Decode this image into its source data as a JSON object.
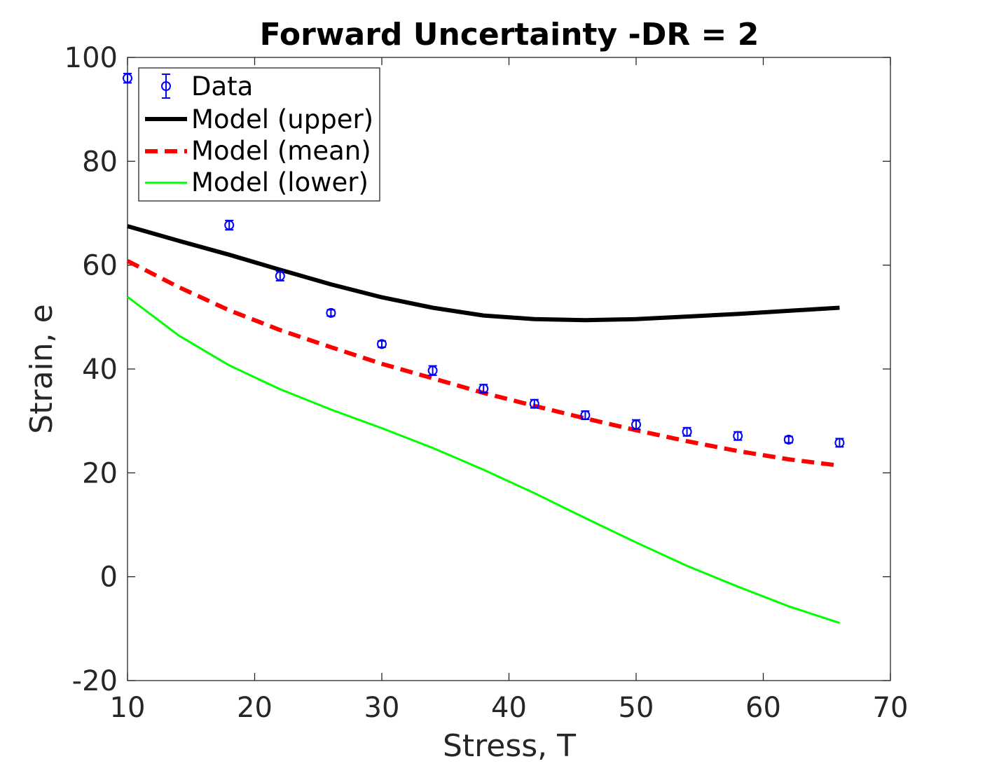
{
  "chart_data": {
    "type": "line",
    "title": "Forward Uncertainty -DR = 2",
    "xlabel": "Stress, T",
    "ylabel": "Strain, e",
    "xlim": [
      10,
      70
    ],
    "ylim": [
      -20,
      100
    ],
    "xticks": [
      10,
      20,
      30,
      40,
      50,
      60,
      70
    ],
    "xtick_labels": [
      "10",
      "20",
      "30",
      "40",
      "50",
      "60",
      "70"
    ],
    "yticks": [
      -20,
      0,
      20,
      40,
      60,
      80,
      100
    ],
    "ytick_labels": [
      "-20",
      "0",
      "20",
      "40",
      "60",
      "80",
      "100"
    ],
    "grid": false,
    "legend_position": "top-left",
    "series": [
      {
        "name": "Data",
        "kind": "errorbar",
        "color": "#0000ff",
        "x": [
          10,
          18,
          22,
          26,
          30,
          34,
          38,
          42,
          46,
          50,
          54,
          58,
          62,
          66
        ],
        "y": [
          96.0,
          67.7,
          57.9,
          50.8,
          44.8,
          39.7,
          36.2,
          33.3,
          31.1,
          29.3,
          27.9,
          27.1,
          26.4,
          25.8
        ],
        "err": [
          0.9,
          0.9,
          0.9,
          0.6,
          0.6,
          0.9,
          0.8,
          0.8,
          0.8,
          0.9,
          0.8,
          0.8,
          0.6,
          0.8
        ]
      },
      {
        "name": "Model (upper)",
        "kind": "line",
        "color": "#000000",
        "x": [
          10,
          14,
          18,
          22,
          26,
          30,
          34,
          38,
          42,
          46,
          50,
          54,
          58,
          62,
          66
        ],
        "y": [
          67.5,
          64.7,
          62.0,
          59.1,
          56.3,
          53.8,
          51.8,
          50.3,
          49.6,
          49.4,
          49.6,
          50.1,
          50.6,
          51.2,
          51.8
        ]
      },
      {
        "name": "Model (mean)",
        "kind": "line",
        "color": "#ff0000",
        "x": [
          10,
          14,
          18,
          22,
          26,
          30,
          34,
          38,
          42,
          46,
          50,
          54,
          58,
          62,
          66
        ],
        "y": [
          60.8,
          55.8,
          51.3,
          47.5,
          44.2,
          41.0,
          38.2,
          35.4,
          32.9,
          30.5,
          28.2,
          26.1,
          24.2,
          22.6,
          21.4
        ]
      },
      {
        "name": "Model (lower)",
        "kind": "line",
        "color": "#00ff00",
        "x": [
          10,
          14,
          18,
          22,
          26,
          30,
          34,
          38,
          42,
          46,
          50,
          54,
          58,
          62,
          66
        ],
        "y": [
          53.9,
          46.5,
          40.7,
          36.1,
          32.2,
          28.6,
          24.8,
          20.6,
          16.1,
          11.3,
          6.6,
          2.1,
          -1.9,
          -5.7,
          -8.9
        ]
      }
    ]
  }
}
